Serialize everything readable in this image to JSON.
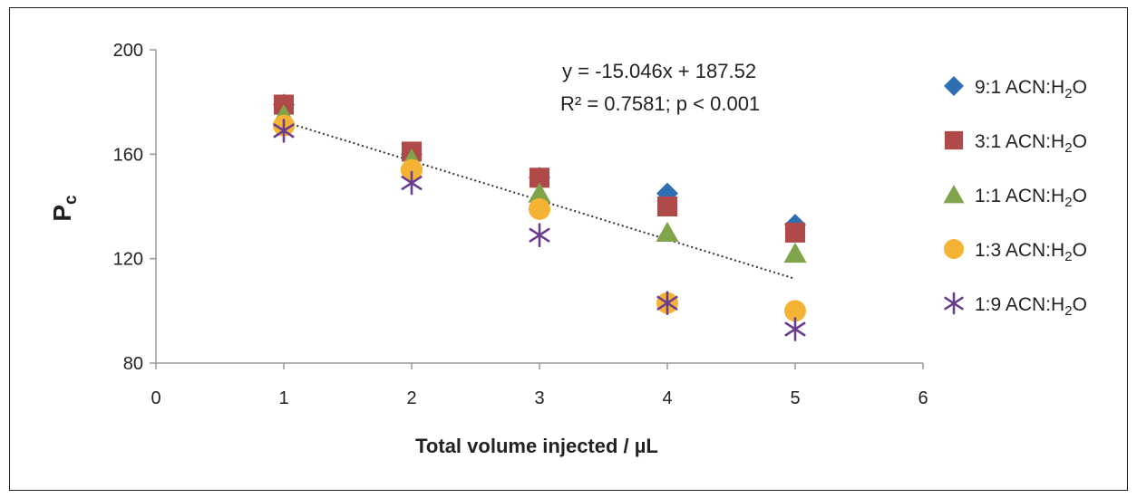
{
  "chart_data": {
    "type": "scatter",
    "title": "",
    "xlabel": "Total volume injected / µL",
    "ylabel": "P",
    "ylabel_subscript": "c",
    "xlim": [
      0,
      6
    ],
    "ylim": [
      80,
      200
    ],
    "xticks": [
      0,
      1,
      2,
      3,
      4,
      5,
      6
    ],
    "yticks": [
      80,
      120,
      160,
      200
    ],
    "grid": false,
    "legend": "right",
    "series": [
      {
        "name": "9:1 ACN:H2O",
        "label_main": "9:1 ACN:H",
        "label_sub": "2",
        "label_tail": "O",
        "marker": "diamond",
        "color": "#2e6fb4",
        "x": [
          1,
          2,
          3,
          4,
          5
        ],
        "y": [
          179,
          160,
          151,
          145,
          133
        ]
      },
      {
        "name": "3:1 ACN:H2O",
        "label_main": "3:1 ACN:H",
        "label_sub": "2",
        "label_tail": "O",
        "marker": "square",
        "color": "#b04a48",
        "x": [
          1,
          2,
          3,
          4,
          5
        ],
        "y": [
          179,
          161,
          151,
          140,
          130
        ]
      },
      {
        "name": "1:1 ACN:H2O",
        "label_main": "1:1 ACN:H",
        "label_sub": "2",
        "label_tail": "O",
        "marker": "triangle",
        "color": "#7fa44a",
        "x": [
          1,
          2,
          3,
          4,
          5
        ],
        "y": [
          175,
          158,
          145,
          130,
          122
        ]
      },
      {
        "name": "1:3 ACN:H2O",
        "label_main": "1:3 ACN:H",
        "label_sub": "2",
        "label_tail": "O",
        "marker": "circle",
        "color": "#f5b335",
        "x": [
          1,
          2,
          3,
          4,
          5
        ],
        "y": [
          171,
          154,
          139,
          103,
          100
        ]
      },
      {
        "name": "1:9 ACN:H2O",
        "label_main": "1:9 ACN:H",
        "label_sub": "2",
        "label_tail": "O",
        "marker": "asterisk",
        "color": "#6a3d8f",
        "x": [
          1,
          2,
          3,
          4,
          5
        ],
        "y": [
          169,
          149,
          129,
          103,
          93
        ]
      }
    ],
    "trendline": {
      "style": "dotted",
      "color": "#333333",
      "slope": -15.046,
      "intercept": 187.52,
      "x_range": [
        1,
        5
      ]
    },
    "annotations": {
      "equation": "y = -15.046x + 187.52",
      "r_squared": "R² = 0.7581; p < 0.001"
    }
  }
}
